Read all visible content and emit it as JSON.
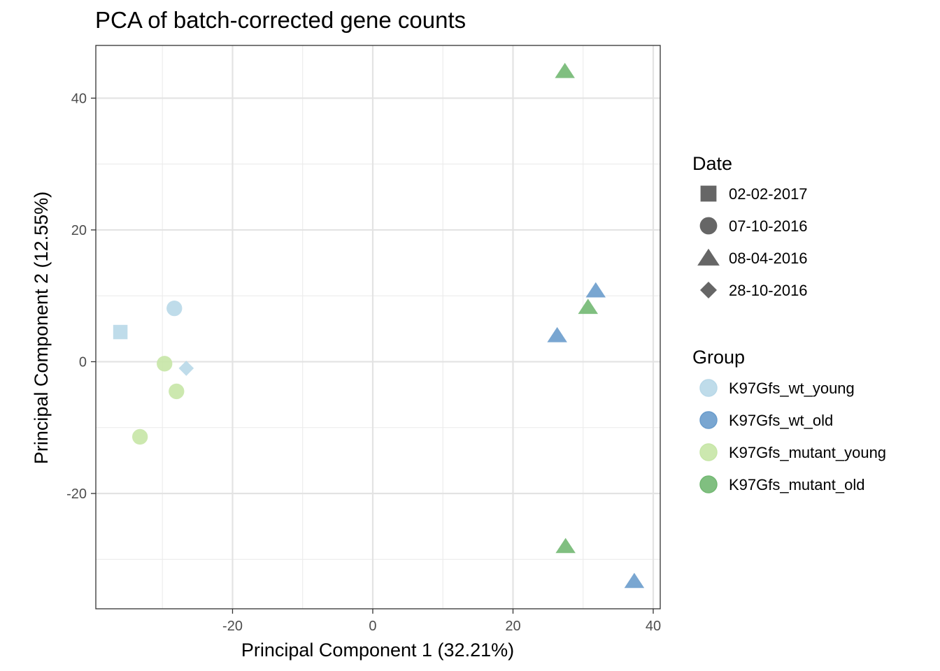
{
  "chart_data": {
    "type": "scatter",
    "title": "PCA of batch-corrected gene counts",
    "xlabel": "Principal Component 1 (32.21%)",
    "ylabel": "Principal Component 2 (12.55%)",
    "xlim": [
      -39.5,
      41
    ],
    "ylim": [
      -37.5,
      48
    ],
    "x_ticks": [
      -20,
      0,
      20,
      40
    ],
    "x_tick_labels": [
      "-20",
      "0",
      "20",
      "40"
    ],
    "y_ticks": [
      -20,
      0,
      20,
      40
    ],
    "y_tick_labels": [
      "-20",
      "0",
      "20",
      "40"
    ],
    "grid": true,
    "legend_position": "right",
    "legends": {
      "shape": {
        "title": "Date",
        "entries": [
          {
            "label": "02-02-2017",
            "shape": "square"
          },
          {
            "label": "07-10-2016",
            "shape": "circle"
          },
          {
            "label": "08-04-2016",
            "shape": "triangle"
          },
          {
            "label": "28-10-2016",
            "shape": "diamond"
          }
        ]
      },
      "color": {
        "title": "Group",
        "entries": [
          {
            "label": "K97Gfs_wt_young",
            "color": "#b8d8e8"
          },
          {
            "label": "K97Gfs_wt_old",
            "color": "#6a9ccc"
          },
          {
            "label": "K97Gfs_mutant_young",
            "color": "#c6e6a6"
          },
          {
            "label": "K97Gfs_mutant_old",
            "color": "#72b872"
          }
        ]
      }
    },
    "points": [
      {
        "x": -36,
        "y": 4.5,
        "group": "K97Gfs_wt_young",
        "date": "02-02-2017"
      },
      {
        "x": -28.3,
        "y": 8.1,
        "group": "K97Gfs_wt_young",
        "date": "07-10-2016"
      },
      {
        "x": -26.6,
        "y": -1.0,
        "group": "K97Gfs_wt_young",
        "date": "28-10-2016"
      },
      {
        "x": -29.7,
        "y": -0.3,
        "group": "K97Gfs_mutant_young",
        "date": "07-10-2016"
      },
      {
        "x": -28.0,
        "y": -4.5,
        "group": "K97Gfs_mutant_young",
        "date": "07-10-2016"
      },
      {
        "x": -33.2,
        "y": -11.4,
        "group": "K97Gfs_mutant_young",
        "date": "07-10-2016"
      },
      {
        "x": 27.4,
        "y": 44.1,
        "group": "K97Gfs_mutant_old",
        "date": "08-04-2016"
      },
      {
        "x": 31.8,
        "y": 10.8,
        "group": "K97Gfs_wt_old",
        "date": "08-04-2016"
      },
      {
        "x": 30.7,
        "y": 8.3,
        "group": "K97Gfs_mutant_old",
        "date": "08-04-2016"
      },
      {
        "x": 26.3,
        "y": 4.0,
        "group": "K97Gfs_wt_old",
        "date": "08-04-2016"
      },
      {
        "x": 27.5,
        "y": -28.0,
        "group": "K97Gfs_mutant_old",
        "date": "08-04-2016"
      },
      {
        "x": 37.3,
        "y": -33.3,
        "group": "K97Gfs_wt_old",
        "date": "08-04-2016"
      }
    ]
  }
}
